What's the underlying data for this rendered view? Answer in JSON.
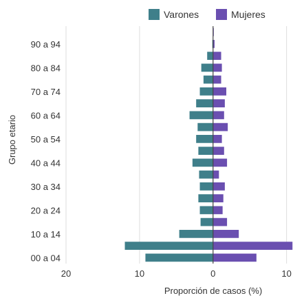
{
  "chart_data": {
    "type": "bar",
    "orientation": "horizontal",
    "layout": "population-pyramid",
    "xlabel": "Proporción de casos (%)",
    "ylabel": "Grupo etario",
    "xlim": [
      -20,
      10.5
    ],
    "x_ticks": [
      -20,
      -10,
      0,
      10
    ],
    "x_tick_labels": [
      "20",
      "10",
      "0",
      "10"
    ],
    "grid": true,
    "legend_position": "top-right",
    "categories": [
      "00 a 04",
      "05 a 09",
      "10 a 14",
      "15 a 19",
      "20 a 24",
      "25 a 29",
      "30 a 34",
      "35 a 39",
      "40 a 44",
      "45 a 49",
      "50 a 54",
      "55 a 59",
      "60 a 64",
      "65 a 69",
      "70 a 74",
      "75 a 79",
      "80 a 84",
      "85 a 89",
      "90 a 94",
      "95 a 99"
    ],
    "category_labels_shown": [
      "00 a 04",
      "",
      "10 a 14",
      "",
      "20 a 24",
      "",
      "30 a 34",
      "",
      "40 a 44",
      "",
      "50 a 54",
      "",
      "60 a 64",
      "",
      "70 a 74",
      "",
      "80 a 84",
      "",
      "90 a 94",
      ""
    ],
    "series": [
      {
        "name": "Varones",
        "color": "#3f7f8a",
        "direction": "left",
        "values": [
          9.2,
          12.0,
          4.6,
          1.7,
          1.8,
          2.0,
          1.8,
          1.9,
          2.8,
          2.0,
          2.3,
          2.1,
          3.2,
          2.3,
          1.8,
          1.3,
          1.6,
          0.8,
          0.1,
          0.0
        ]
      },
      {
        "name": "Mujeres",
        "color": "#6a4fb0",
        "direction": "right",
        "values": [
          5.9,
          10.8,
          3.5,
          1.9,
          1.3,
          1.4,
          1.6,
          0.8,
          1.9,
          1.5,
          1.2,
          2.0,
          1.5,
          1.6,
          1.8,
          1.1,
          1.2,
          1.1,
          0.2,
          0.1
        ]
      }
    ]
  }
}
